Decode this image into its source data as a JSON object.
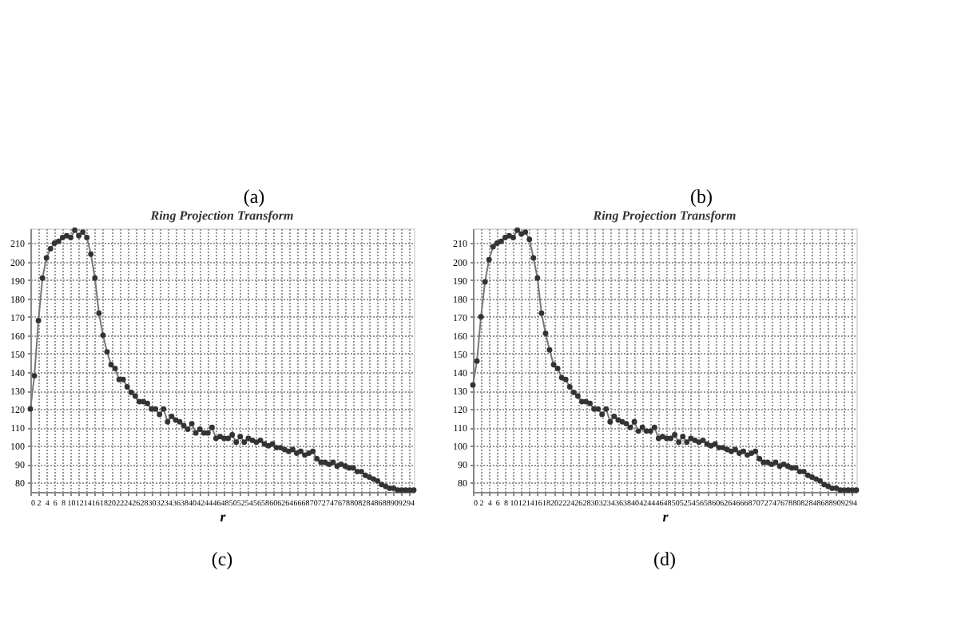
{
  "chart_data": [
    {
      "type": "other",
      "annotations": [
        "(a)",
        "(b)"
      ]
    },
    {
      "type": "line",
      "title": "Ring Projection Transform",
      "xlabel": "r",
      "annotations": [
        "(c)"
      ],
      "marker": "circle",
      "line_style": "solid",
      "grid": true,
      "x": [
        0,
        1,
        2,
        3,
        4,
        5,
        6,
        7,
        8,
        9,
        10,
        11,
        12,
        13,
        14,
        15,
        16,
        17,
        18,
        19,
        20,
        21,
        22,
        23,
        24,
        25,
        26,
        27,
        28,
        29,
        30,
        31,
        32,
        33,
        34,
        35,
        36,
        37,
        38,
        39,
        40,
        41,
        42,
        43,
        44,
        45,
        46,
        47,
        48,
        49,
        50,
        51,
        52,
        53,
        54,
        55,
        56,
        57,
        58,
        59,
        60,
        61,
        62,
        63,
        64,
        65,
        66,
        67,
        68,
        69,
        70,
        71,
        72,
        73,
        74,
        75,
        76,
        77,
        78,
        79,
        80,
        81,
        82,
        83,
        84,
        85,
        86,
        87,
        88,
        89,
        90,
        91,
        92,
        93,
        94,
        95
      ],
      "series": [
        {
          "color": "#333333",
          "values": [
            120,
            138,
            168,
            191,
            202,
            207,
            210,
            211,
            213,
            214,
            213,
            217,
            214,
            216,
            213,
            204,
            191,
            172,
            160,
            151,
            144,
            142,
            136,
            136,
            132,
            129,
            127,
            124,
            124,
            123,
            120,
            120,
            117,
            120,
            113,
            116,
            114,
            113,
            111,
            109,
            112,
            107,
            109,
            107,
            107,
            110,
            104,
            105,
            104,
            104,
            106,
            102,
            105,
            102,
            104,
            103,
            102,
            103,
            101,
            100,
            101,
            99,
            99,
            98,
            97,
            98,
            96,
            97,
            95,
            96,
            97,
            93,
            91,
            91,
            90,
            91,
            89,
            90,
            89,
            88,
            88,
            86,
            86,
            84,
            83,
            82,
            81,
            79,
            78,
            77,
            77,
            76,
            76,
            76,
            76,
            76
          ]
        }
      ],
      "xlim": [
        0,
        95
      ],
      "ylim": [
        75,
        218
      ],
      "xticks": [
        0,
        2,
        4,
        6,
        8,
        10,
        12,
        14,
        16,
        18,
        20,
        22,
        24,
        26,
        28,
        30,
        32,
        34,
        36,
        38,
        40,
        42,
        44,
        46,
        48,
        50,
        52,
        54,
        56,
        58,
        60,
        62,
        64,
        66,
        68,
        70,
        72,
        74,
        76,
        78,
        80,
        82,
        84,
        86,
        88,
        90,
        92,
        94
      ],
      "yticks": [
        80,
        90,
        100,
        110,
        120,
        130,
        140,
        150,
        160,
        170,
        180,
        190,
        200,
        210
      ]
    },
    {
      "type": "line",
      "title": "Ring Projection Transform",
      "xlabel": "r",
      "annotations": [
        "(d)"
      ],
      "marker": "circle",
      "line_style": "solid",
      "grid": true,
      "x": [
        0,
        1,
        2,
        3,
        4,
        5,
        6,
        7,
        8,
        9,
        10,
        11,
        12,
        13,
        14,
        15,
        16,
        17,
        18,
        19,
        20,
        21,
        22,
        23,
        24,
        25,
        26,
        27,
        28,
        29,
        30,
        31,
        32,
        33,
        34,
        35,
        36,
        37,
        38,
        39,
        40,
        41,
        42,
        43,
        44,
        45,
        46,
        47,
        48,
        49,
        50,
        51,
        52,
        53,
        54,
        55,
        56,
        57,
        58,
        59,
        60,
        61,
        62,
        63,
        64,
        65,
        66,
        67,
        68,
        69,
        70,
        71,
        72,
        73,
        74,
        75,
        76,
        77,
        78,
        79,
        80,
        81,
        82,
        83,
        84,
        85,
        86,
        87,
        88,
        89,
        90,
        91,
        92,
        93,
        94,
        95
      ],
      "series": [
        {
          "color": "#333333",
          "values": [
            133,
            146,
            170,
            189,
            201,
            208,
            210,
            211,
            213,
            214,
            213,
            217,
            215,
            216,
            212,
            202,
            191,
            172,
            161,
            152,
            144,
            142,
            137,
            136,
            132,
            129,
            127,
            124,
            124,
            123,
            120,
            120,
            117,
            120,
            113,
            116,
            114,
            113,
            112,
            110,
            113,
            108,
            110,
            108,
            108,
            110,
            104,
            105,
            104,
            104,
            106,
            102,
            105,
            102,
            104,
            103,
            102,
            103,
            101,
            100,
            101,
            99,
            99,
            98,
            97,
            98,
            96,
            97,
            95,
            96,
            97,
            93,
            91,
            91,
            90,
            91,
            89,
            90,
            89,
            88,
            88,
            86,
            86,
            84,
            83,
            82,
            81,
            79,
            78,
            77,
            77,
            76,
            76,
            76,
            76,
            76
          ]
        }
      ],
      "xlim": [
        0,
        95
      ],
      "ylim": [
        75,
        218
      ],
      "xticks": [
        0,
        2,
        4,
        6,
        8,
        10,
        12,
        14,
        16,
        18,
        20,
        22,
        24,
        26,
        28,
        30,
        32,
        34,
        36,
        38,
        40,
        42,
        44,
        46,
        48,
        50,
        52,
        54,
        56,
        58,
        60,
        62,
        64,
        66,
        68,
        70,
        72,
        74,
        76,
        78,
        80,
        82,
        84,
        86,
        88,
        90,
        92,
        94
      ],
      "yticks": [
        80,
        90,
        100,
        110,
        120,
        130,
        140,
        150,
        160,
        170,
        180,
        190,
        200,
        210
      ]
    }
  ]
}
